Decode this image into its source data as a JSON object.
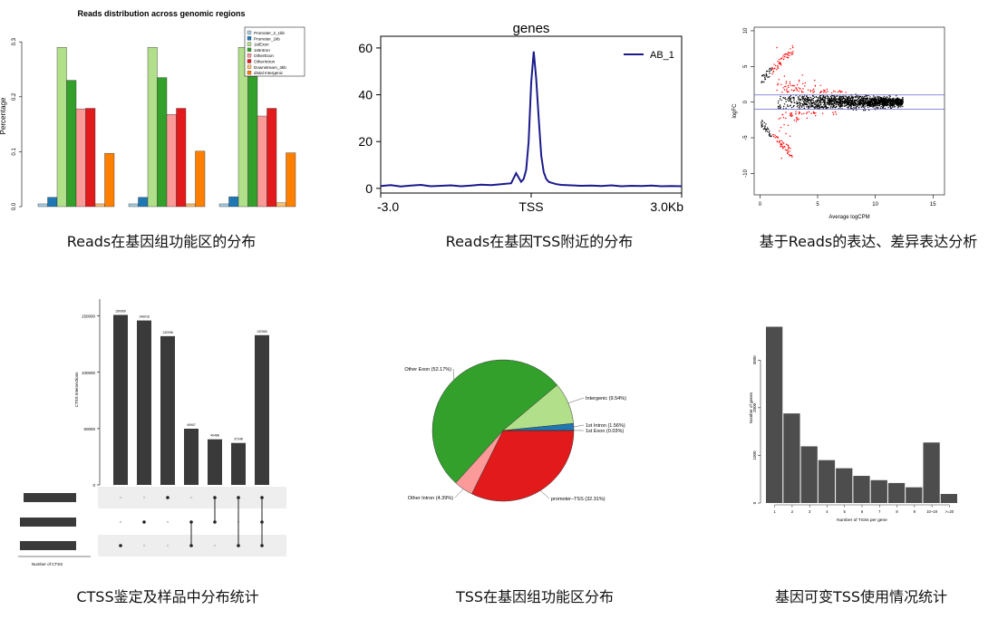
{
  "captions": {
    "p1": "Reads在基因组功能区的分布",
    "p2": "Reads在基因TSS附近的分布",
    "p3": "基于Reads的表达、差异表达分析",
    "p4": "CTSS鉴定及样品中分布统计",
    "p5": "TSS在基因组功能区分布",
    "p6": "基因可变TSS使用情况统计"
  },
  "chart_data": [
    {
      "id": "reads-distribution",
      "type": "bar",
      "title": "Reads distribution across genomic regions",
      "ylabel": "Percentage",
      "ylim": [
        0,
        0.33
      ],
      "yticks": [
        0.0,
        0.1,
        0.2,
        0.3
      ],
      "groups": 3,
      "legend_position": "top-right",
      "series": [
        {
          "name": "Promoter_2_1kb",
          "color": "#a6cee3",
          "values": [
            0.005,
            0.005,
            0.005
          ]
        },
        {
          "name": "Promoter_1kb",
          "color": "#1f78b4",
          "values": [
            0.017,
            0.017,
            0.018
          ]
        },
        {
          "name": "1stExon",
          "color": "#b2df8a",
          "values": [
            0.29,
            0.29,
            0.29
          ]
        },
        {
          "name": "1stIntron",
          "color": "#33a02c",
          "values": [
            0.23,
            0.235,
            0.237
          ]
        },
        {
          "name": "OtherExon",
          "color": "#fb9a99",
          "values": [
            0.178,
            0.168,
            0.165
          ]
        },
        {
          "name": "OtherIntron",
          "color": "#e31a1c",
          "values": [
            0.179,
            0.179,
            0.179
          ]
        },
        {
          "name": "Downstream_3kb",
          "color": "#fdbf6f",
          "values": [
            0.005,
            0.005,
            0.007
          ]
        },
        {
          "name": "distal Intergenic",
          "color": "#ff7f00",
          "values": [
            0.097,
            0.101,
            0.098
          ]
        }
      ]
    },
    {
      "id": "tss-profile",
      "type": "line",
      "title": "genes",
      "x_ticklabels": [
        "-3.0",
        "TSS",
        "3.0Kb"
      ],
      "xlim": [
        -3.0,
        3.0
      ],
      "ylim": [
        -2,
        65
      ],
      "yticks": [
        0,
        20,
        40,
        60
      ],
      "legend_position": "top-right",
      "series": [
        {
          "name": "AB_1",
          "color": "#1a1a8c",
          "x": [
            -3.0,
            -2.8,
            -2.6,
            -2.4,
            -2.2,
            -2.0,
            -1.8,
            -1.6,
            -1.4,
            -1.2,
            -1.0,
            -0.8,
            -0.6,
            -0.4,
            -0.3,
            -0.2,
            -0.15,
            -0.1,
            -0.05,
            0.0,
            0.05,
            0.1,
            0.15,
            0.2,
            0.25,
            0.3,
            0.35,
            0.4,
            0.5,
            0.6,
            0.8,
            1.0,
            1.2,
            1.4,
            1.6,
            1.8,
            2.0,
            2.2,
            2.4,
            2.6,
            2.8,
            3.0
          ],
          "y": [
            1.0,
            1.4,
            0.8,
            1.2,
            1.5,
            0.9,
            1.1,
            1.3,
            0.9,
            1.2,
            1.6,
            1.4,
            1.8,
            2.2,
            6.5,
            2.8,
            4.0,
            8.0,
            20.0,
            45.0,
            58.5,
            47.0,
            30.0,
            14.0,
            7.0,
            4.0,
            2.8,
            2.4,
            1.8,
            1.5,
            1.3,
            1.1,
            1.2,
            1.0,
            1.3,
            0.9,
            1.1,
            1.0,
            1.2,
            0.9,
            1.0,
            0.9
          ]
        }
      ]
    },
    {
      "id": "ma-plot",
      "type": "scatter",
      "xlabel": "Average logCPM",
      "ylabel": "logFC",
      "xlim": [
        -0.5,
        16
      ],
      "ylim": [
        -13,
        10.5
      ],
      "xticks": [
        0,
        5,
        10,
        15
      ],
      "yticks": [
        -10,
        -5,
        0,
        5,
        10
      ],
      "hlines": [
        1,
        -1
      ],
      "hline_color": "#6666cc",
      "series": [
        {
          "name": "",
          "color": "#000000",
          "description_values": "not significant"
        },
        {
          "name": "",
          "color": "#ff0000",
          "description_values": "significant"
        }
      ]
    },
    {
      "id": "ctss-upset",
      "type": "bar",
      "ylabel": "CTSS Intersections",
      "ylim": [
        0,
        165000
      ],
      "yticks": [
        0,
        50000,
        100000,
        150000
      ],
      "values": [
        150960,
        146016,
        132096,
        49907,
        40488,
        37248,
        132960
      ],
      "set_size_label": "Number of CTSS",
      "set_sizes": [
        1,
        1,
        1
      ],
      "intersections": [
        [
          2
        ],
        [
          1
        ],
        [
          0
        ],
        [
          1,
          2
        ],
        [
          0,
          1
        ],
        [
          0,
          2
        ],
        [
          0,
          1,
          2
        ]
      ]
    },
    {
      "id": "tss-pie",
      "type": "pie",
      "slices": [
        {
          "label": "promoter–TSS (32.31%)",
          "value": 32.31,
          "color": "#e31a1c"
        },
        {
          "label": "Other Intron (4.39%)",
          "value": 4.39,
          "color": "#fb9a99"
        },
        {
          "label": "Other Exon (52.17%)",
          "value": 52.17,
          "color": "#33a02c"
        },
        {
          "label": "Intergenic (9.54%)",
          "value": 9.54,
          "color": "#b2df8a"
        },
        {
          "label": "1st Intron (1.56%)",
          "value": 1.56,
          "color": "#1f78b4"
        },
        {
          "label": "1st Exon (0.03%)",
          "value": 0.03,
          "color": "#a6cee3"
        }
      ]
    },
    {
      "id": "tss-per-gene",
      "type": "bar",
      "xlabel": "Number of TSSs per gene",
      "ylabel": "Number of genes",
      "categories": [
        "1",
        "2",
        "3",
        "4",
        "5",
        "6",
        "7",
        "8",
        "9",
        "10~19",
        ">=20"
      ],
      "values": [
        3700,
        1880,
        1190,
        900,
        730,
        570,
        480,
        420,
        330,
        1270,
        190
      ],
      "ylim": [
        0,
        3900
      ],
      "yticks": [
        0,
        1000,
        2000,
        3000
      ],
      "color": "#4d4d4d"
    }
  ]
}
